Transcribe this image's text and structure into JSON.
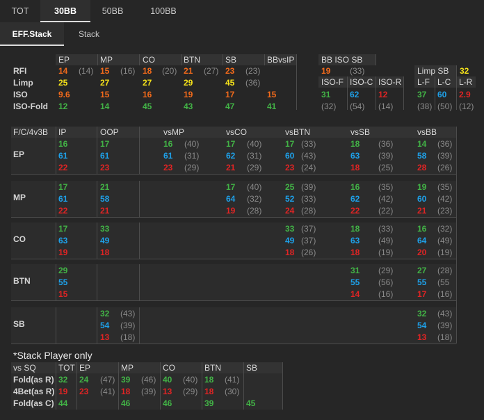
{
  "tabs": [
    "TOT",
    "30BB",
    "50BB",
    "100BB"
  ],
  "subtabs": [
    "EFF.Stack",
    "Stack"
  ],
  "top": {
    "headers": [
      "EP",
      "MP",
      "CO",
      "BTN",
      "SB",
      "BBvsIP",
      "BB ISO SB"
    ],
    "rows": [
      {
        "label": "RFI",
        "cells": [
          "14",
          "(14)",
          "15",
          "(16)",
          "18",
          "(20)",
          "21",
          "(27)",
          "23",
          "(23)",
          "",
          "",
          "19",
          "(33)"
        ]
      },
      {
        "label": "Limp",
        "cells": [
          "25",
          "",
          "27",
          "",
          "27",
          "",
          "29",
          "",
          "45",
          "(36)"
        ]
      },
      {
        "label": "ISO",
        "cells": [
          "9.6",
          "",
          "15",
          "",
          "16",
          "",
          "19",
          "",
          "17",
          "",
          "15",
          ""
        ]
      },
      {
        "label": "ISO-Fold",
        "cells": [
          "12",
          "",
          "14",
          "",
          "45",
          "",
          "43",
          "",
          "47",
          "",
          "41",
          ""
        ]
      }
    ],
    "iso_headers": [
      "ISO-F",
      "ISO-C",
      "ISO-R"
    ],
    "iso_rows": [
      [
        "31",
        "62",
        "12"
      ],
      [
        "(32)",
        "(54)",
        "(14)"
      ]
    ],
    "limp_sb_label": "Limp SB",
    "limp_sb_value": "32",
    "lcr_headers": [
      "L-F",
      "L-C",
      "L-R"
    ],
    "lcr_rows": [
      [
        "37",
        "60",
        "2.9"
      ],
      [
        "(38)",
        "(50)",
        "(12)"
      ]
    ]
  },
  "grid": {
    "corner": "F/C/4v3B",
    "headers": [
      "IP",
      "OOP",
      "vsMP",
      "vsCO",
      "vsBTN",
      "vsSB",
      "vsBB"
    ],
    "sections": [
      {
        "label": "EP",
        "ip": [
          "16",
          "61",
          "22"
        ],
        "oop": [
          "17",
          "61",
          "23"
        ],
        "vs": [
          [
            "16",
            "(40)",
            "61",
            "(31)",
            "23",
            "(29)"
          ],
          [
            "17",
            "(40)",
            "62",
            "(31)",
            "21",
            "(29)"
          ],
          [
            "17",
            "(33)",
            "60",
            "(43)",
            "23",
            "(24)"
          ],
          [
            "18",
            "(36)",
            "63",
            "(39)",
            "18",
            "(25)"
          ],
          [
            "14",
            "(36)",
            "58",
            "(39)",
            "28",
            "(26)"
          ]
        ]
      },
      {
        "label": "MP",
        "ip": [
          "17",
          "61",
          "22"
        ],
        "oop": [
          "21",
          "58",
          "21"
        ],
        "vs": [
          [
            "",
            "",
            "",
            "",
            "",
            ""
          ],
          [
            "17",
            "(40)",
            "64",
            "(32)",
            "19",
            "(28)"
          ],
          [
            "25",
            "(39)",
            "52",
            "(33)",
            "24",
            "(28)"
          ],
          [
            "16",
            "(35)",
            "62",
            "(42)",
            "22",
            "(22)"
          ],
          [
            "19",
            "(35)",
            "60",
            "(42)",
            "21",
            "(23)"
          ]
        ]
      },
      {
        "label": "CO",
        "ip": [
          "17",
          "63",
          "19"
        ],
        "oop": [
          "33",
          "49",
          "18"
        ],
        "vs": [
          [
            "",
            "",
            "",
            "",
            "",
            ""
          ],
          [
            "",
            "",
            "",
            "",
            "",
            ""
          ],
          [
            "33",
            "(37)",
            "49",
            "(37)",
            "18",
            "(26)"
          ],
          [
            "18",
            "(33)",
            "63",
            "(49)",
            "18",
            "(19)"
          ],
          [
            "16",
            "(32)",
            "64",
            "(49)",
            "20",
            "(19)"
          ]
        ]
      },
      {
        "label": "BTN",
        "ip": [
          "29",
          "55",
          "15"
        ],
        "oop": [
          "",
          "",
          ""
        ],
        "vs": [
          [
            "",
            "",
            "",
            "",
            "",
            ""
          ],
          [
            "",
            "",
            "",
            "",
            "",
            ""
          ],
          [
            "",
            "",
            "",
            "",
            "",
            ""
          ],
          [
            "31",
            "(29)",
            "55",
            "(56)",
            "14",
            "(16)"
          ],
          [
            "27",
            "(28)",
            "55",
            "(55",
            "17",
            "(16)"
          ]
        ]
      },
      {
        "label": "SB",
        "ip": [
          "",
          "",
          ""
        ],
        "oop": [
          "32",
          "54",
          "13"
        ],
        "oop_pct": [
          "(43)",
          "(39)",
          "(18)"
        ],
        "vs": [
          [
            "",
            "",
            "",
            "",
            "",
            ""
          ],
          [
            "",
            "",
            "",
            "",
            "",
            ""
          ],
          [
            "",
            "",
            "",
            "",
            "",
            ""
          ],
          [
            "",
            "",
            "",
            "",
            "",
            ""
          ],
          [
            "32",
            "(43)",
            "54",
            "(39)",
            "13",
            "(18)"
          ]
        ]
      }
    ]
  },
  "bottom": {
    "title": "*Stack Player only",
    "headers": [
      "vs SQ",
      "TOT",
      "EP",
      "MP",
      "CO",
      "BTN",
      "SB"
    ],
    "rows": [
      {
        "label": "Fold(as R)",
        "cells": [
          "32",
          "24",
          "(47)",
          "39",
          "(46)",
          "40",
          "(40)",
          "18",
          "(41)",
          "",
          ""
        ]
      },
      {
        "label": "4Bet(as R)",
        "cells": [
          "19",
          "23",
          "(41)",
          "18",
          "(39)",
          "13",
          "(29)",
          "18",
          "(30)",
          "",
          ""
        ]
      },
      {
        "label": "Fold(as C)",
        "cells": [
          "44",
          "",
          "",
          "46",
          "",
          "46",
          "",
          "39",
          "",
          "45",
          ""
        ]
      }
    ]
  },
  "colors": {
    "green": "#42b346",
    "blue": "#1ea0e8",
    "red": "#e02424",
    "orange": "#f26a1b",
    "yellow": "#f6e31a",
    "paren": "#8a8a8a",
    "bg": "#262626"
  }
}
